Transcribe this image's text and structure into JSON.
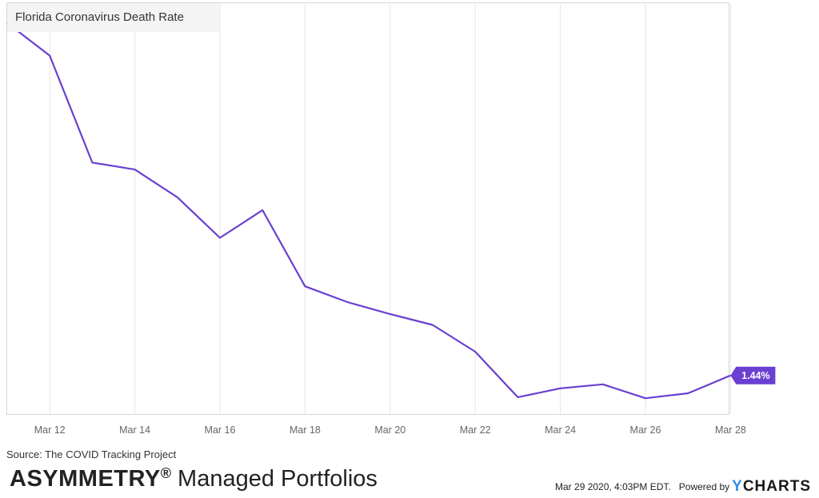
{
  "chart_data": {
    "type": "line",
    "title": "Florida Coronavirus Death Rate",
    "x": [
      "Mar 11",
      "Mar 12",
      "Mar 13",
      "Mar 14",
      "Mar 15",
      "Mar 16",
      "Mar 17",
      "Mar 18",
      "Mar 19",
      "Mar 20",
      "Mar 21",
      "Mar 22",
      "Mar 23",
      "Mar 24",
      "Mar 25",
      "Mar 26",
      "Mar 27",
      "Mar 28"
    ],
    "x_ticks": [
      "Mar 12",
      "Mar 14",
      "Mar 16",
      "Mar 18",
      "Mar 20",
      "Mar 22",
      "Mar 24",
      "Mar 26",
      "Mar 28"
    ],
    "series": [
      {
        "values": [
          5.0,
          4.67,
          3.59,
          3.52,
          3.24,
          2.83,
          3.11,
          2.34,
          2.18,
          2.06,
          1.95,
          1.68,
          1.22,
          1.31,
          1.35,
          1.21,
          1.26,
          1.44
        ],
        "color": "#6a3fd1"
      }
    ],
    "last_value_label": "1.44%",
    "ylim": [
      1.05,
      5.2
    ],
    "grid": "vertical",
    "legend": "none"
  },
  "footer": {
    "source": "Source: The COVID Tracking Project",
    "brand_bold": "ASYMMETRY",
    "brand_reg": "®",
    "brand_rest": " Managed Portfolios",
    "timestamp": "Mar 29 2020, 4:03PM EDT.",
    "powered_by": "Powered by",
    "logo_y": "Y",
    "logo_rest": "CHARTS"
  }
}
